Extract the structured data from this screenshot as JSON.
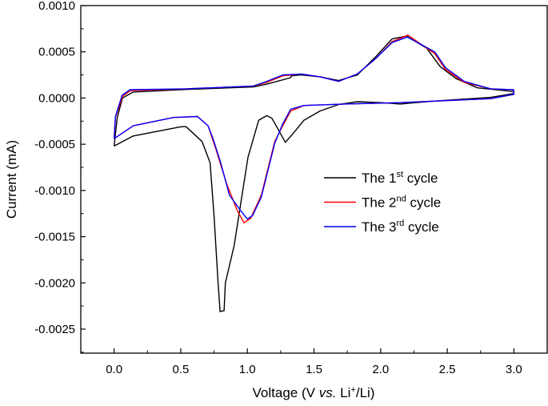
{
  "chart_data": {
    "type": "line",
    "xlabel": {
      "prefix": "Voltage (V ",
      "italic": "vs.",
      "mid": " Li",
      "sup": "+",
      "suffix": "/Li)"
    },
    "ylabel": "Current (mA)",
    "xlim": [
      -0.25,
      3.25
    ],
    "ylim": [
      -0.00276,
      0.001
    ],
    "xticks": [
      "0.0",
      "0.5",
      "1.0",
      "1.5",
      "2.0",
      "2.5",
      "3.0"
    ],
    "yticks": [
      "0.0010",
      "0.0005",
      "0.0000",
      "-0.0005",
      "-0.0010",
      "-0.0015",
      "-0.0020",
      "-0.0025"
    ],
    "grid": false,
    "legend_position": "center-right",
    "series": [
      {
        "legend": {
          "text": "The 1",
          "sup": "st",
          "suffix": " cycle"
        },
        "color": "#000000",
        "points": [
          [
            0,
            -0.00052
          ],
          [
            0.024,
            -0.00021
          ],
          [
            0.063,
            0.0
          ],
          [
            0.144,
            6.5e-05
          ],
          [
            0.543,
            9.3e-05
          ],
          [
            1.045,
            0.00012
          ],
          [
            1.145,
            0.00015
          ],
          [
            1.325,
            0.00022
          ],
          [
            1.33,
            0.00024
          ],
          [
            1.405,
            0.00025
          ],
          [
            1.545,
            0.00023
          ],
          [
            1.685,
            0.00019
          ],
          [
            1.825,
            0.00025
          ],
          [
            1.965,
            0.00045
          ],
          [
            2.086,
            0.00064
          ],
          [
            2.195,
            0.00067
          ],
          [
            2.345,
            0.00054
          ],
          [
            2.447,
            0.00034
          ],
          [
            2.567,
            0.00021
          ],
          [
            2.727,
            0.00011
          ],
          [
            2.997,
            7e-05
          ],
          [
            3.0,
            5e-05
          ],
          [
            2.826,
            7e-06
          ],
          [
            2.426,
            -3e-05
          ],
          [
            2.146,
            -6.5e-05
          ],
          [
            2.006,
            -5e-05
          ],
          [
            1.825,
            -4e-05
          ],
          [
            1.685,
            -7e-05
          ],
          [
            1.545,
            -0.00014
          ],
          [
            1.425,
            -0.00024
          ],
          [
            1.345,
            -0.00038
          ],
          [
            1.285,
            -0.00048
          ],
          [
            1.235,
            -0.00035
          ],
          [
            1.185,
            -0.00022
          ],
          [
            1.145,
            -0.00019
          ],
          [
            1.085,
            -0.00024
          ],
          [
            1.005,
            -0.00064
          ],
          [
            0.9,
            -0.0016
          ],
          [
            0.835,
            -0.002
          ],
          [
            0.825,
            -0.0023
          ],
          [
            0.795,
            -0.00231
          ],
          [
            0.78,
            -0.002
          ],
          [
            0.75,
            -0.00128
          ],
          [
            0.72,
            -0.0007
          ],
          [
            0.66,
            -0.00047
          ],
          [
            0.54,
            -0.00031
          ],
          [
            0.505,
            -0.00031
          ],
          [
            0.144,
            -0.00041
          ],
          [
            0,
            -0.00052
          ]
        ]
      },
      {
        "legend": {
          "text": "The 2",
          "sup": "nd",
          "suffix": " cycle"
        },
        "color": "#ff0000",
        "points": [
          [
            0,
            -0.00044
          ],
          [
            0.01,
            -0.00021
          ],
          [
            0.064,
            2e-05
          ],
          [
            0.124,
            8e-05
          ],
          [
            0.543,
            0.0001
          ],
          [
            1.045,
            0.00013
          ],
          [
            1.145,
            0.00017
          ],
          [
            1.265,
            0.00024
          ],
          [
            1.405,
            0.00026
          ],
          [
            1.545,
            0.00023
          ],
          [
            1.685,
            0.00018
          ],
          [
            1.825,
            0.00026
          ],
          [
            1.965,
            0.00043
          ],
          [
            2.086,
            0.00061
          ],
          [
            2.205,
            0.00068
          ],
          [
            2.406,
            0.00048
          ],
          [
            2.486,
            0.00031
          ],
          [
            2.626,
            0.00017
          ],
          [
            2.826,
            0.0001
          ],
          [
            2.997,
            9e-05
          ],
          [
            3.0,
            4e-05
          ],
          [
            2.826,
            -7e-06
          ],
          [
            2.146,
            -5e-05
          ],
          [
            1.726,
            -6.5e-05
          ],
          [
            1.425,
            -8e-05
          ],
          [
            1.325,
            -0.00014
          ],
          [
            1.265,
            -0.0003
          ],
          [
            1.205,
            -0.00047
          ],
          [
            1.105,
            -0.00105
          ],
          [
            1.025,
            -0.0013
          ],
          [
            0.975,
            -0.00135
          ],
          [
            0.925,
            -0.00122
          ],
          [
            0.845,
            -0.00093
          ],
          [
            0.765,
            -0.00056
          ],
          [
            0.705,
            -0.0003
          ],
          [
            0.625,
            -0.0002
          ],
          [
            0.445,
            -0.00021
          ],
          [
            0.144,
            -0.0003
          ],
          [
            0,
            -0.00044
          ]
        ]
      },
      {
        "legend": {
          "text": "The 3",
          "sup": "rd",
          "suffix": " cycle"
        },
        "color": "#0000ff",
        "points": [
          [
            0,
            -0.00044
          ],
          [
            0.01,
            -0.0002
          ],
          [
            0.06,
            3e-05
          ],
          [
            0.12,
            9e-05
          ],
          [
            0.543,
            0.0001
          ],
          [
            1.045,
            0.00013
          ],
          [
            1.145,
            0.00018
          ],
          [
            1.265,
            0.00025
          ],
          [
            1.405,
            0.00026
          ],
          [
            1.545,
            0.00023
          ],
          [
            1.685,
            0.00018
          ],
          [
            1.825,
            0.00026
          ],
          [
            1.965,
            0.00043
          ],
          [
            2.086,
            0.0006
          ],
          [
            2.2,
            0.00066
          ],
          [
            2.406,
            0.0005
          ],
          [
            2.486,
            0.00033
          ],
          [
            2.626,
            0.00018
          ],
          [
            2.826,
            0.0001
          ],
          [
            2.997,
            9e-05
          ],
          [
            3.0,
            4e-05
          ],
          [
            2.826,
            -7e-06
          ],
          [
            2.146,
            -5e-05
          ],
          [
            1.726,
            -6.5e-05
          ],
          [
            1.425,
            -8e-05
          ],
          [
            1.325,
            -0.00012
          ],
          [
            1.265,
            -0.00028
          ],
          [
            1.205,
            -0.00049
          ],
          [
            1.105,
            -0.00107
          ],
          [
            1.04,
            -0.00127
          ],
          [
            1.0,
            -0.00131
          ],
          [
            0.94,
            -0.0012
          ],
          [
            0.865,
            -0.00105
          ],
          [
            0.8,
            -0.0007
          ],
          [
            0.745,
            -0.00045
          ],
          [
            0.705,
            -0.0003
          ],
          [
            0.625,
            -0.0002
          ],
          [
            0.445,
            -0.00021
          ],
          [
            0.144,
            -0.0003
          ],
          [
            0,
            -0.00044
          ]
        ]
      }
    ]
  }
}
